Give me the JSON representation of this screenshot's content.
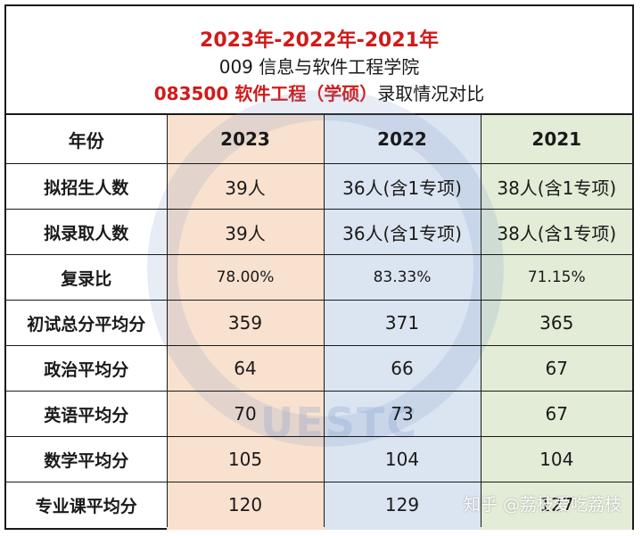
{
  "header": {
    "years_title": "2023年-2022年-2021年",
    "school": "009 信息与软件工程学院",
    "major_red": "083500 软件工程（学硕）",
    "major_suffix": "录取情况对比"
  },
  "table": {
    "columns": [
      "年份",
      "2023",
      "2022",
      "2021"
    ],
    "rows": [
      {
        "label": "拟招生人数",
        "values": [
          "39人",
          "36人(含1专项)",
          "38人(含1专项)"
        ]
      },
      {
        "label": "拟录取人数",
        "values": [
          "39人",
          "36人(含1专项)",
          "38人(含1专项)"
        ]
      },
      {
        "label": "复录比",
        "values": [
          "78.00%",
          "83.33%",
          "71.15%"
        ]
      },
      {
        "label": "初试总分平均分",
        "values": [
          "359",
          "371",
          "365"
        ]
      },
      {
        "label": "政治平均分",
        "values": [
          "64",
          "66",
          "67"
        ]
      },
      {
        "label": "英语平均分",
        "values": [
          "70",
          "73",
          "67"
        ]
      },
      {
        "label": "数学平均分",
        "values": [
          "105",
          "104",
          "104"
        ]
      },
      {
        "label": "专业课平均分",
        "values": [
          "120",
          "129",
          "127"
        ]
      }
    ]
  },
  "background_watermark": "UESTC",
  "watermark": "知乎 @荔枝爱吃荔枝",
  "colors": {
    "title_red": "#d11a1a",
    "col_2023": "#f9e1cf",
    "col_2022": "#dbe4f1",
    "col_2021": "#e2ecd6"
  }
}
